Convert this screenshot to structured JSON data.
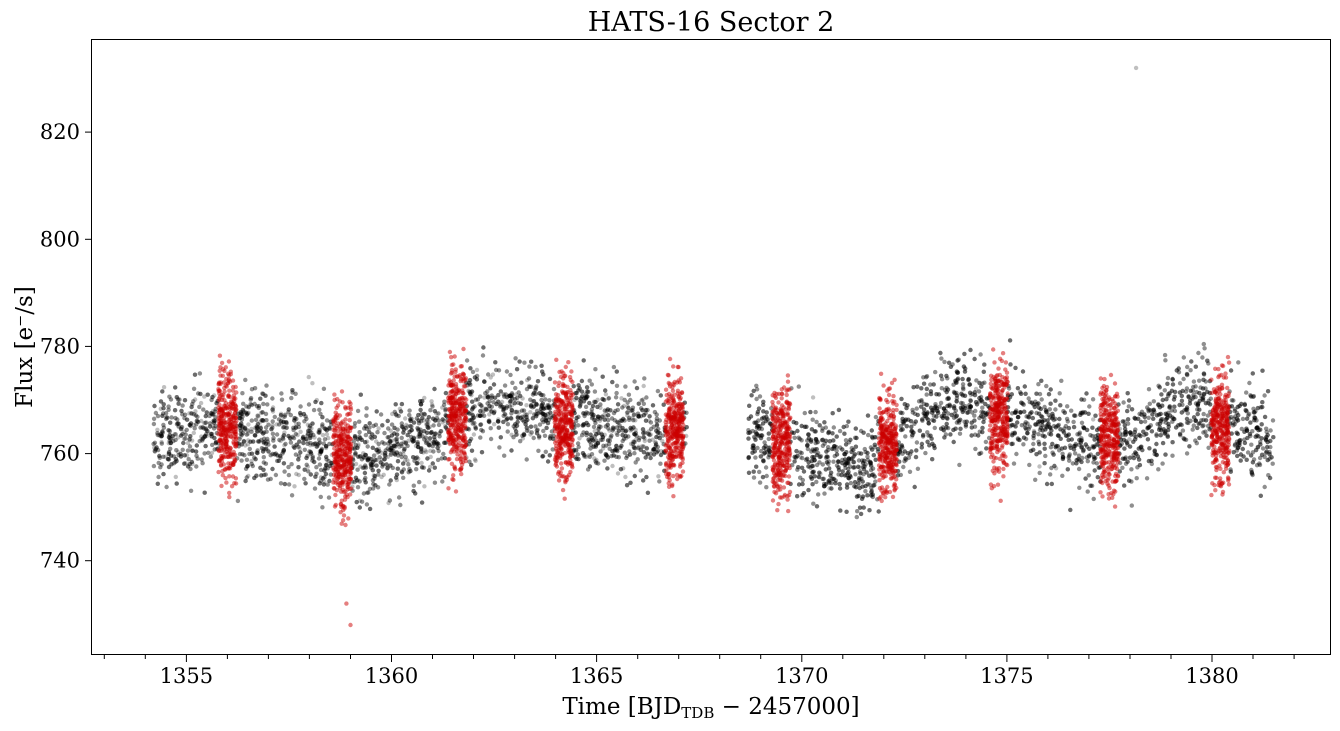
{
  "chart_data": {
    "type": "scatter",
    "title": "HATS-16 Sector 2",
    "xlabel": {
      "prefix": "Time [BJD",
      "subscript": "TDB",
      "suffix": " − 2457000]"
    },
    "ylabel": "Flux [e⁻/s]",
    "xlim": [
      1352.7,
      1382.9
    ],
    "ylim": [
      722.4,
      837.2
    ],
    "x_ticks": [
      1355,
      1360,
      1365,
      1370,
      1375,
      1380
    ],
    "x_tick_labels": [
      "1355",
      "1360",
      "1365",
      "1370",
      "1375",
      "1380"
    ],
    "x_minor_step": 1,
    "y_ticks": [
      740,
      760,
      780,
      800,
      820
    ],
    "y_tick_labels": [
      "740",
      "760",
      "780",
      "800",
      "820"
    ],
    "grid": false,
    "legend": "none",
    "series": [
      {
        "color": "#000000",
        "marker": "circle",
        "alpha": 0.25,
        "time_segments": [
          [
            1354.2,
            1367.2
          ],
          [
            1368.7,
            1381.5
          ]
        ],
        "approx_count": 9000,
        "baseline_trend": {
          "x": [
            1354.2,
            1356.0,
            1358.0,
            1359.5,
            1361.0,
            1362.5,
            1364.5,
            1367.0,
            1368.8,
            1370.0,
            1371.5,
            1373.5,
            1375.0,
            1377.5,
            1379.5,
            1381.5
          ],
          "y": [
            763,
            765,
            762,
            759,
            764,
            770,
            766,
            764,
            764,
            760,
            757,
            770,
            768,
            760,
            771,
            762
          ]
        },
        "scatter_sigma": 6,
        "outliers": [
          {
            "x": 1378.15,
            "y": 832
          }
        ]
      },
      {
        "color": "#cc0000",
        "marker": "circle",
        "alpha": 0.5,
        "in_transit_windows": [
          {
            "center": 1356.0,
            "half_width": 0.22,
            "flux": 765
          },
          {
            "center": 1358.8,
            "half_width": 0.22,
            "flux": 760
          },
          {
            "center": 1361.6,
            "half_width": 0.22,
            "flux": 767
          },
          {
            "center": 1364.2,
            "half_width": 0.22,
            "flux": 765
          },
          {
            "center": 1366.9,
            "half_width": 0.22,
            "flux": 765
          },
          {
            "center": 1369.5,
            "half_width": 0.22,
            "flux": 762
          },
          {
            "center": 1372.1,
            "half_width": 0.22,
            "flux": 762
          },
          {
            "center": 1374.8,
            "half_width": 0.22,
            "flux": 767
          },
          {
            "center": 1377.5,
            "half_width": 0.22,
            "flux": 763
          },
          {
            "center": 1380.2,
            "half_width": 0.22,
            "flux": 765
          }
        ],
        "scatter_sigma": 7,
        "outliers": [
          {
            "x": 1358.9,
            "y": 732
          },
          {
            "x": 1359.0,
            "y": 728
          }
        ]
      }
    ]
  }
}
